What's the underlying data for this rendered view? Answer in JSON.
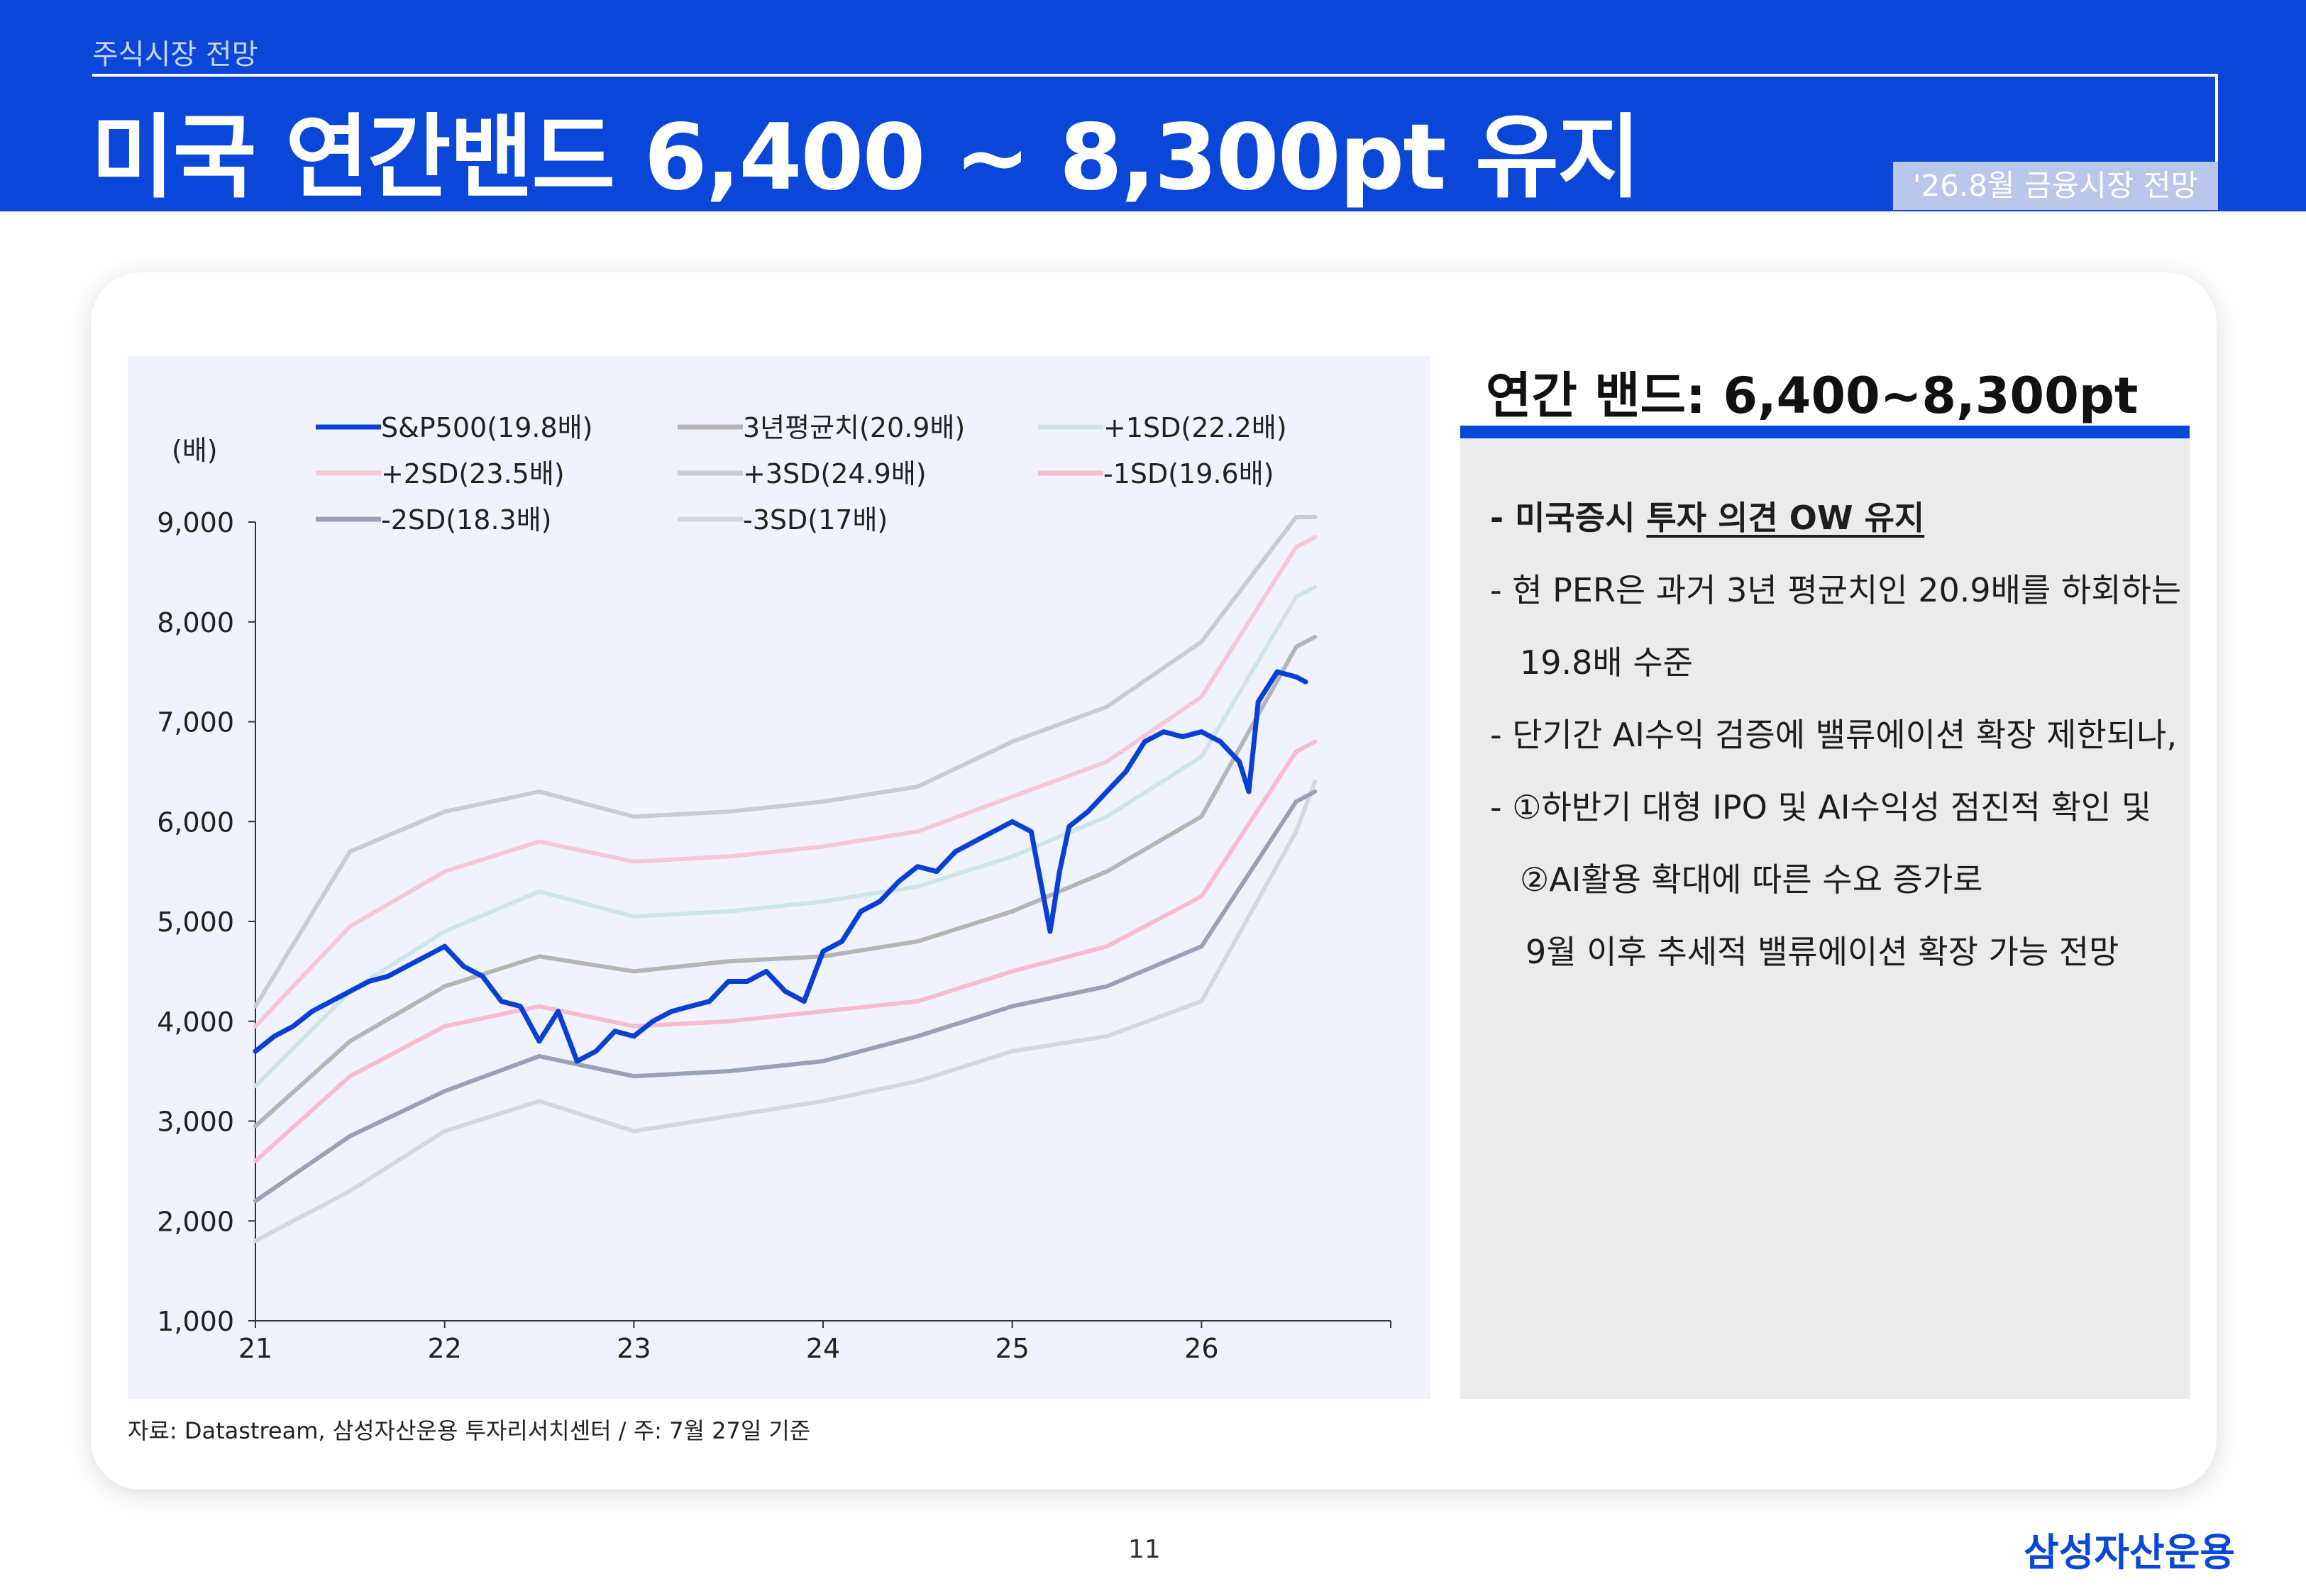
{
  "header": {
    "section": "주식시장 전망",
    "title": "미국 연간밴드 6,400 ~ 8,300pt 유지",
    "report": "'26.8월 금융시장 전망"
  },
  "chart_data": {
    "type": "line",
    "ylabel": "(배)",
    "xlim": [
      21,
      27
    ],
    "ylim": [
      1000,
      9000
    ],
    "yticks": [
      1000,
      2000,
      3000,
      4000,
      5000,
      6000,
      7000,
      8000,
      9000
    ],
    "xticks": [
      21,
      22,
      23,
      24,
      25,
      26
    ],
    "series": [
      {
        "name": "S&P500(19.8배)",
        "color": "#0a3fd6",
        "x": [
          21.0,
          21.1,
          21.2,
          21.3,
          21.4,
          21.5,
          21.6,
          21.7,
          21.8,
          21.9,
          22.0,
          22.1,
          22.2,
          22.3,
          22.4,
          22.5,
          22.6,
          22.7,
          22.8,
          22.9,
          23.0,
          23.1,
          23.2,
          23.3,
          23.4,
          23.5,
          23.6,
          23.7,
          23.8,
          23.9,
          24.0,
          24.1,
          24.2,
          24.3,
          24.4,
          24.5,
          24.6,
          24.7,
          24.8,
          24.9,
          25.0,
          25.1,
          25.2,
          25.25,
          25.3,
          25.4,
          25.5,
          25.6,
          25.7,
          25.8,
          25.9,
          26.0,
          26.1,
          26.2,
          26.25,
          26.3,
          26.4,
          26.5,
          26.55
        ],
        "y": [
          3700,
          3850,
          3950,
          4100,
          4200,
          4300,
          4400,
          4450,
          4550,
          4650,
          4750,
          4550,
          4450,
          4200,
          4150,
          3800,
          4100,
          3600,
          3700,
          3900,
          3850,
          4000,
          4100,
          4150,
          4200,
          4400,
          4400,
          4500,
          4300,
          4200,
          4700,
          4800,
          5100,
          5200,
          5400,
          5550,
          5500,
          5700,
          5800,
          5900,
          6000,
          5900,
          4900,
          5500,
          5950,
          6100,
          6300,
          6500,
          6800,
          6900,
          6850,
          6900,
          6800,
          6600,
          6300,
          7200,
          7500,
          7450,
          7400
        ]
      },
      {
        "name": "3년평균치(20.9배)",
        "color": "#b5b5b5",
        "x": [
          21,
          21.5,
          22,
          22.5,
          23,
          23.5,
          24,
          24.5,
          25,
          25.5,
          26,
          26.5,
          26.6
        ],
        "y": [
          2950,
          3800,
          4350,
          4650,
          4500,
          4600,
          4650,
          4800,
          5100,
          5500,
          6050,
          7750,
          7850
        ]
      },
      {
        "name": "+1SD(22.2배)",
        "color": "#cfe3ea",
        "x": [
          21,
          21.5,
          22,
          22.5,
          23,
          23.5,
          24,
          24.5,
          25,
          25.5,
          26,
          26.5,
          26.6
        ],
        "y": [
          3350,
          4300,
          4900,
          5300,
          5050,
          5100,
          5200,
          5350,
          5650,
          6050,
          6650,
          8250,
          8350
        ]
      },
      {
        "name": "+2SD(23.5배)",
        "color": "#f4c8d4",
        "x": [
          21,
          21.5,
          22,
          22.5,
          23,
          23.5,
          24,
          24.5,
          25,
          25.5,
          26,
          26.5,
          26.6
        ],
        "y": [
          3950,
          4950,
          5500,
          5800,
          5600,
          5650,
          5750,
          5900,
          6250,
          6600,
          7250,
          8750,
          8850
        ]
      },
      {
        "name": "+3SD(24.9배)",
        "color": "#c8cad8",
        "x": [
          21,
          21.5,
          22,
          22.5,
          23,
          23.5,
          24,
          24.5,
          25,
          25.5,
          26,
          26.5,
          26.6
        ],
        "y": [
          4150,
          5700,
          6100,
          6300,
          6050,
          6100,
          6200,
          6350,
          6800,
          7150,
          7800,
          9050,
          9050
        ]
      },
      {
        "name": "-1SD(19.6배)",
        "color": "#f7bccd",
        "x": [
          21,
          21.5,
          22,
          22.5,
          23,
          23.5,
          24,
          24.5,
          25,
          25.5,
          26,
          26.5,
          26.6
        ],
        "y": [
          2600,
          3450,
          3950,
          4150,
          3950,
          4000,
          4100,
          4200,
          4500,
          4750,
          5250,
          6700,
          6800
        ]
      },
      {
        "name": "-2SD(18.3배)",
        "color": "#9aa0b8",
        "x": [
          21,
          21.5,
          22,
          22.5,
          23,
          23.5,
          24,
          24.5,
          25,
          25.5,
          26,
          26.5,
          26.6
        ],
        "y": [
          2200,
          2850,
          3300,
          3650,
          3450,
          3500,
          3600,
          3850,
          4150,
          4350,
          4750,
          6200,
          6300
        ]
      },
      {
        "name": "-3SD(17배)",
        "color": "#d4d6e2",
        "x": [
          21,
          21.5,
          22,
          22.5,
          23,
          23.5,
          24,
          24.5,
          25,
          25.5,
          26,
          26.5,
          26.6
        ],
        "y": [
          1800,
          2300,
          2900,
          3200,
          2900,
          3050,
          3200,
          3400,
          3700,
          3850,
          4200,
          5900,
          6400
        ]
      }
    ]
  },
  "source": "자료: Datastream, 삼성자산운용 투자리서치센터 / 주: 7월 27일 기준",
  "panel": {
    "title": "연간 밴드: 6,400~8,300pt",
    "b1_prefix": "- 미국증시 ",
    "b1_underline": "투자 의견 OW 유지",
    "b2": "- 현 PER은 과거 3년 평균치인 20.9배를 하회하는",
    "b3": "19.8배 수준",
    "b4": "- 단기간 AI수익 검증에 밸류에이션 확장 제한되나,",
    "b5": "- ①하반기 대형 IPO 및 AI수익성 점진적 확인 및",
    "b6": "②AI활용 확대에 따른 수요 증가로",
    "b7": "9월 이후 추세적 밸류에이션 확장 가능 전망"
  },
  "footer": {
    "page": "11",
    "logo": "삼성자산운용"
  }
}
